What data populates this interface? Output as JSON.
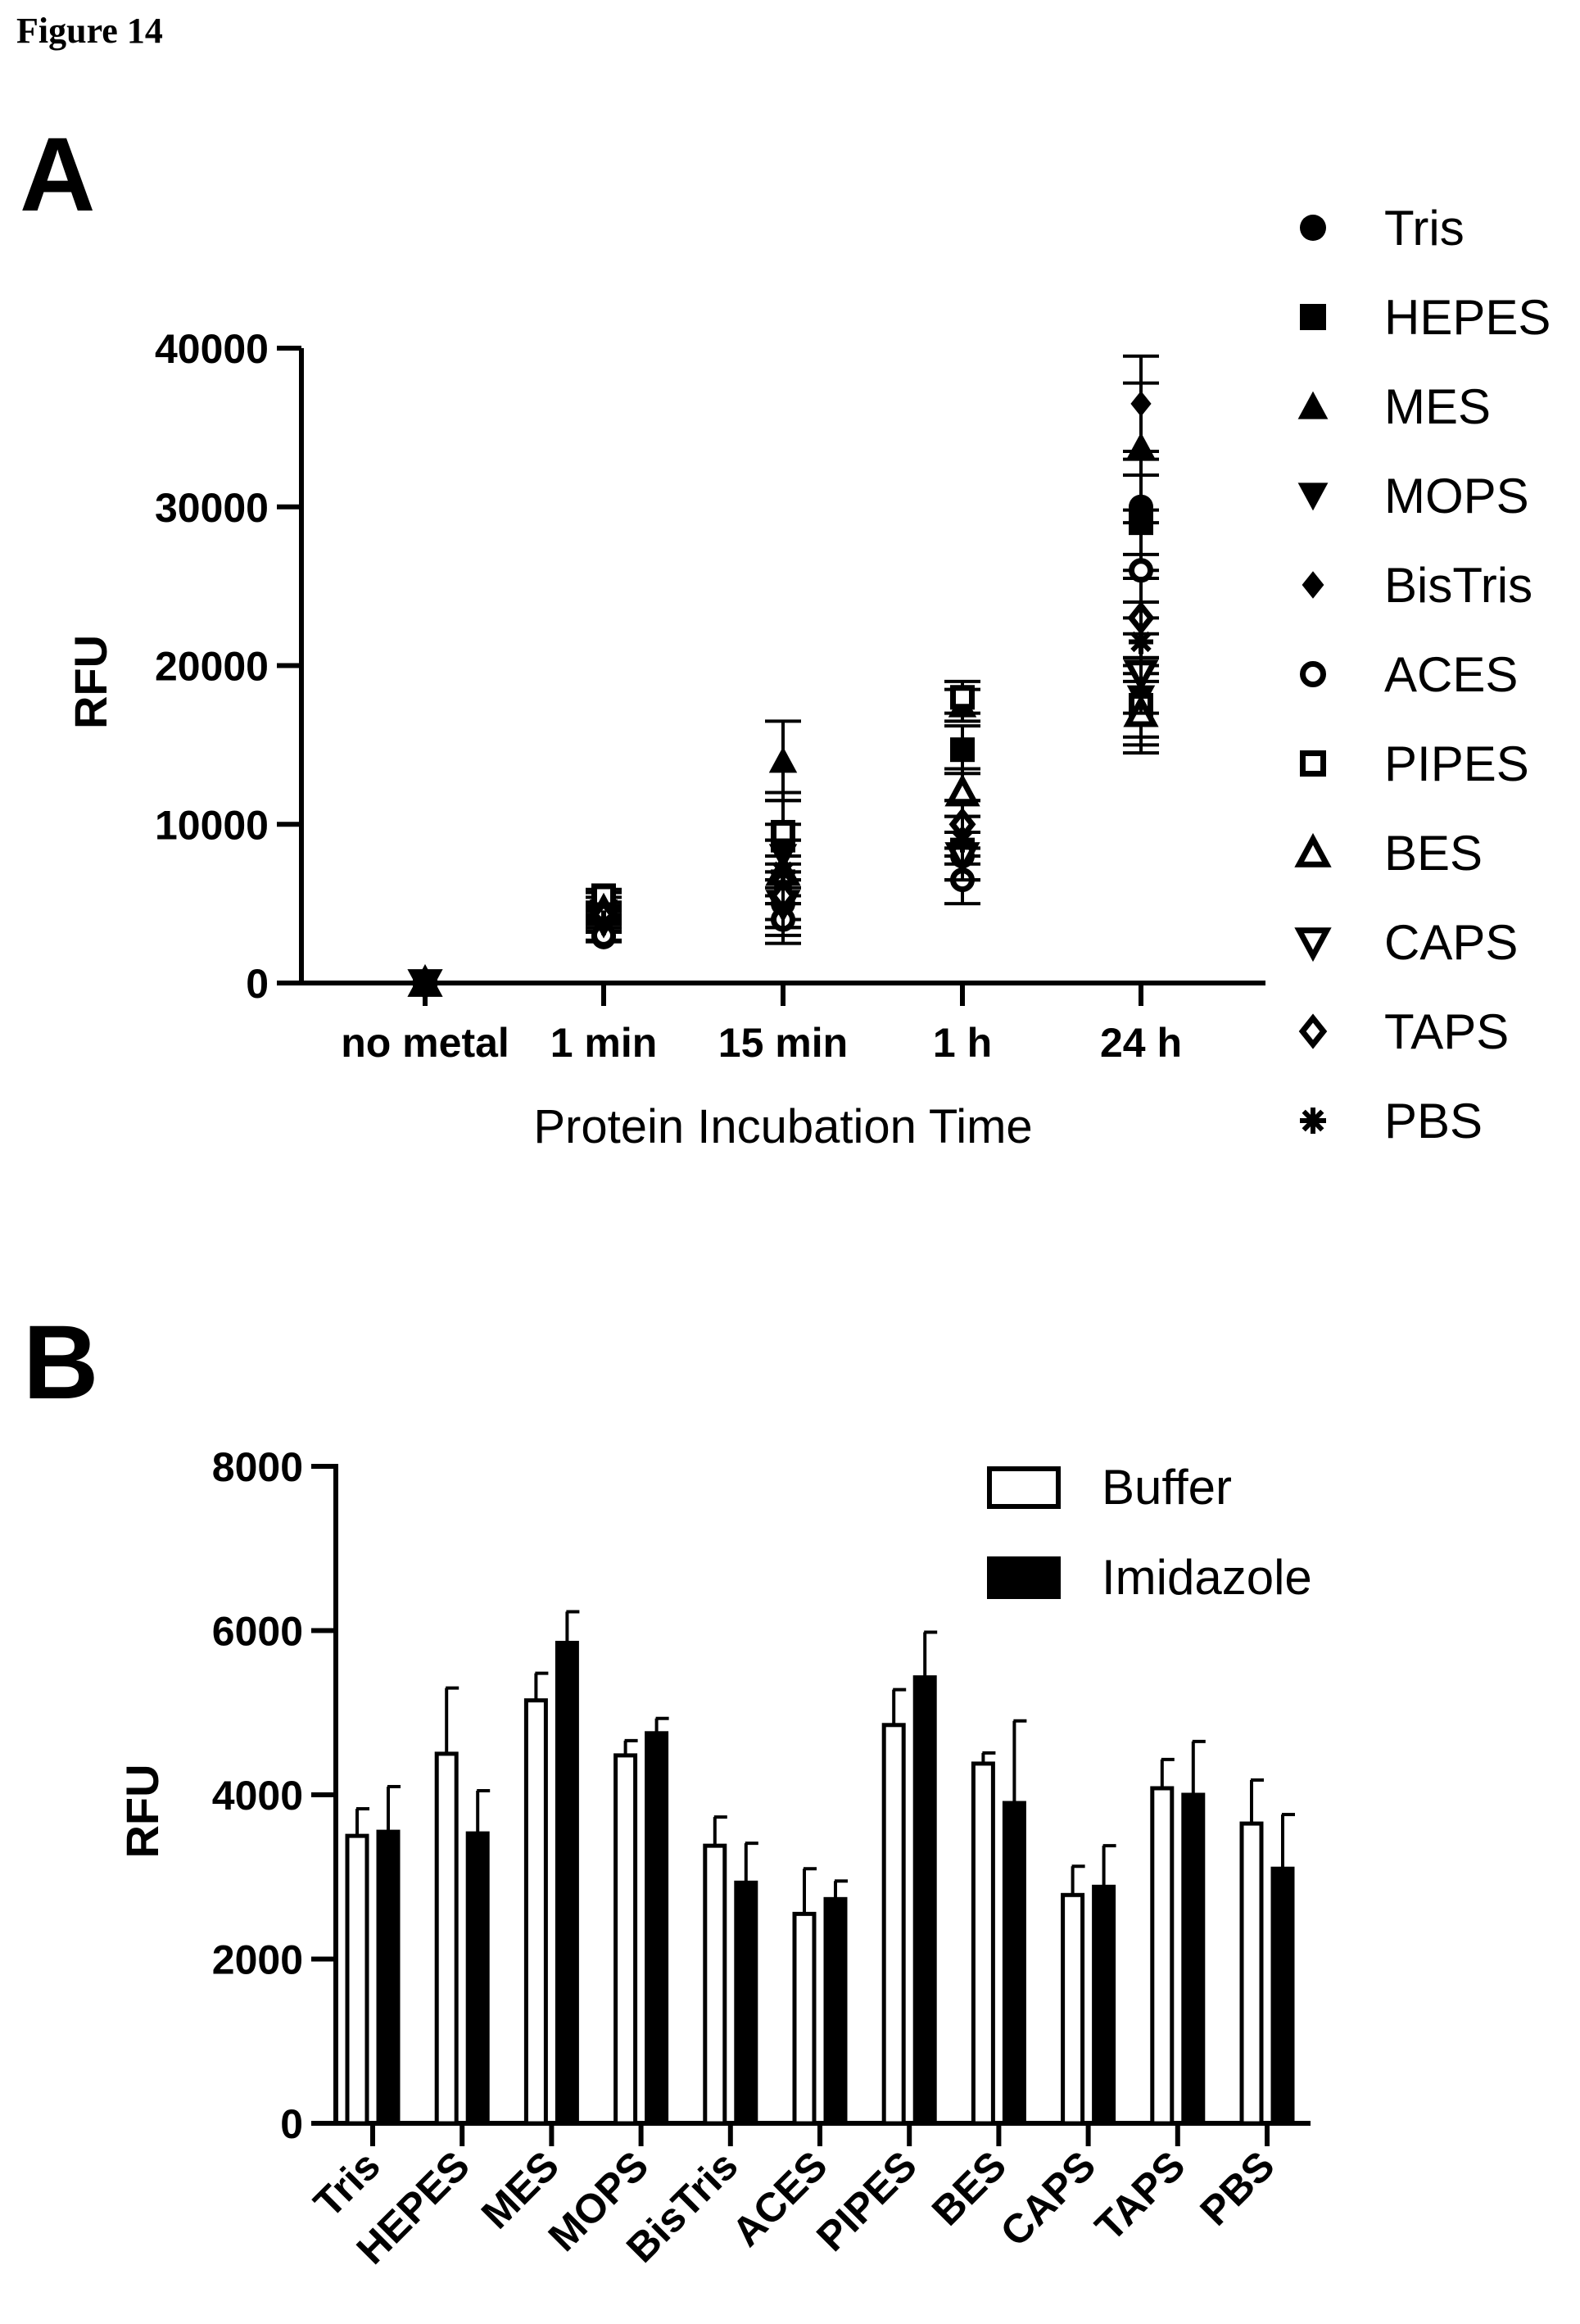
{
  "figure_label": "Figure 14",
  "chart_data": [
    {
      "panel": "A",
      "type": "scatter",
      "xlabel": "Protein Incubation Time",
      "ylabel": "RFU",
      "categories": [
        "no metal",
        "1 min",
        "15 min",
        "1 h",
        "24 h"
      ],
      "ylim": [
        0,
        40000
      ],
      "yticks": [
        0,
        10000,
        20000,
        30000,
        40000
      ],
      "ytick_labels": [
        "0",
        "10000",
        "20000",
        "30000",
        "40000"
      ],
      "grid": false,
      "legend_position": "right",
      "series": [
        {
          "name": "Tris",
          "marker": "filled-circle",
          "values": [
            0,
            2900,
            5000,
            8000,
            30000
          ],
          "err": [
            0,
            300,
            1500,
            1500,
            3000
          ]
        },
        {
          "name": "HEPES",
          "marker": "filled-square",
          "values": [
            0,
            5300,
            9000,
            14700,
            29000
          ],
          "err": [
            0,
            400,
            2500,
            1500,
            3000
          ]
        },
        {
          "name": "MES",
          "marker": "filled-triangle-up",
          "values": [
            0,
            5000,
            14000,
            17500,
            33800
          ],
          "err": [
            0,
            400,
            2500,
            1000,
            4000
          ]
        },
        {
          "name": "MOPS",
          "marker": "filled-triangle-down",
          "values": [
            0,
            4500,
            8000,
            8000,
            18000
          ],
          "err": [
            0,
            400,
            2000,
            1500,
            2500
          ]
        },
        {
          "name": "BisTris",
          "marker": "filled-diamond",
          "values": [
            0,
            3500,
            6000,
            10000,
            36500
          ],
          "err": [
            0,
            300,
            2000,
            1500,
            3000
          ]
        },
        {
          "name": "ACES",
          "marker": "open-circle",
          "values": [
            0,
            3000,
            4000,
            6500,
            26000
          ],
          "err": [
            0,
            300,
            1500,
            1500,
            3000
          ]
        },
        {
          "name": "PIPES",
          "marker": "open-square",
          "values": [
            0,
            5500,
            9500,
            18000,
            17500
          ],
          "err": [
            0,
            400,
            2500,
            1000,
            2500
          ]
        },
        {
          "name": "BES",
          "marker": "open-triangle-up",
          "values": [
            0,
            4500,
            7000,
            12000,
            17000
          ],
          "err": [
            0,
            300,
            2000,
            1500,
            2500
          ]
        },
        {
          "name": "CAPS",
          "marker": "open-triangle-down",
          "values": [
            0,
            4000,
            5000,
            8000,
            19500
          ],
          "err": [
            0,
            300,
            2000,
            1500,
            2500
          ]
        },
        {
          "name": "TAPS",
          "marker": "open-diamond",
          "values": [
            0,
            4200,
            5500,
            10000,
            23000
          ],
          "err": [
            0,
            300,
            2000,
            1500,
            2500
          ]
        },
        {
          "name": "PBS",
          "marker": "asterisk",
          "values": [
            0,
            3800,
            7000,
            9000,
            21500
          ],
          "err": [
            0,
            300,
            2000,
            1500,
            2500
          ]
        }
      ]
    },
    {
      "panel": "B",
      "type": "bar",
      "xlabel": "",
      "ylabel": "RFU",
      "categories": [
        "Tris",
        "HEPES",
        "MES",
        "MOPS",
        "BisTris",
        "ACES",
        "PIPES",
        "BES",
        "CAPS",
        "TAPS",
        "PBS"
      ],
      "ylim": [
        0,
        8000
      ],
      "yticks": [
        0,
        2000,
        4000,
        6000,
        8000
      ],
      "ytick_labels": [
        "0",
        "2000",
        "4000",
        "6000",
        "8000"
      ],
      "grid": false,
      "legend_position": "top-right",
      "series": [
        {
          "name": "Buffer",
          "fill": "#ffffff",
          "values": [
            3500,
            4500,
            5150,
            4480,
            3380,
            2550,
            4850,
            4380,
            2780,
            4080,
            3650
          ],
          "err": [
            330,
            800,
            330,
            180,
            350,
            550,
            430,
            130,
            350,
            350,
            530
          ]
        },
        {
          "name": "Imidazole",
          "fill": "#000000",
          "values": [
            3550,
            3530,
            5850,
            4750,
            2930,
            2730,
            5430,
            3900,
            2880,
            4000,
            3100
          ],
          "err": [
            550,
            520,
            380,
            180,
            480,
            220,
            550,
            1000,
            500,
            650,
            660
          ]
        }
      ]
    }
  ]
}
